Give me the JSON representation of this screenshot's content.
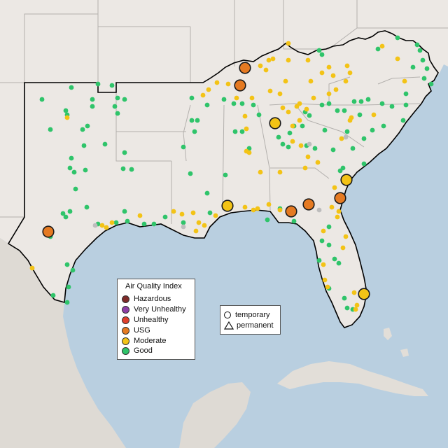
{
  "legend": {
    "title": "Air Quality Index",
    "items": [
      {
        "label": "Hazardous",
        "color": "#7e2b29"
      },
      {
        "label": "Very Unhealthy",
        "color": "#8e3fa6"
      },
      {
        "label": "Unhealthy",
        "color": "#e0402d"
      },
      {
        "label": "USG",
        "color": "#e57a22"
      },
      {
        "label": "Moderate",
        "color": "#f3c316"
      },
      {
        "label": "Good",
        "color": "#2fc46a"
      }
    ]
  },
  "type_legend": {
    "items": [
      {
        "label": "temporary",
        "shape": "circle"
      },
      {
        "label": "permanent",
        "shape": "triangle"
      }
    ]
  },
  "map": {
    "land_color": "#ece8e4",
    "water_color": "#b9cfe0",
    "state_border_color": "#b3b0ad",
    "region_border_color": "#000000"
  }
}
